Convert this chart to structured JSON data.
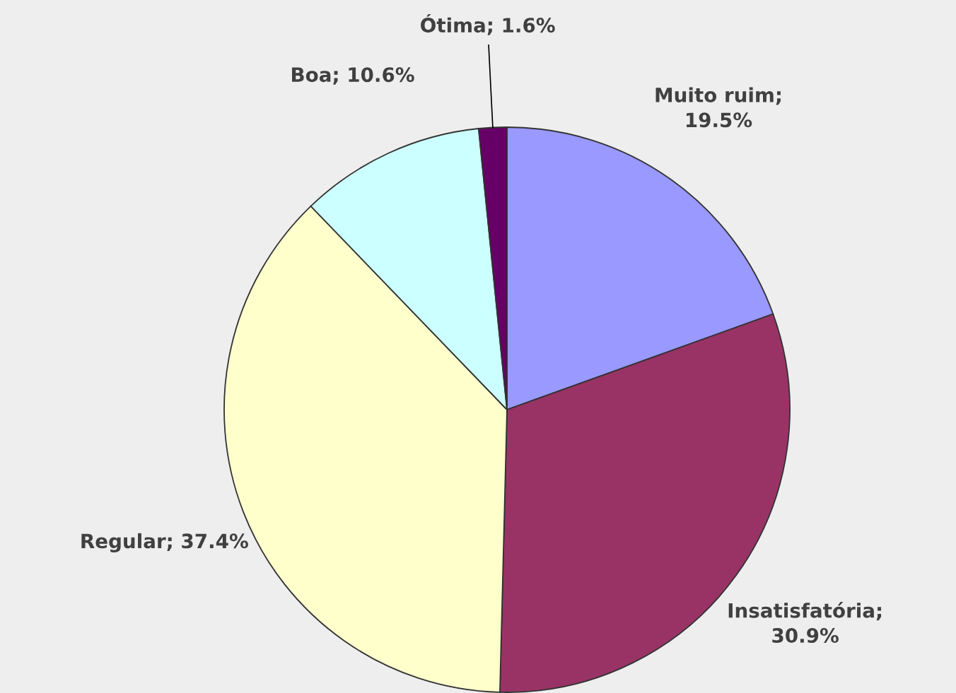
{
  "chart_data": {
    "type": "pie",
    "categories": [
      "Muito ruim",
      "Insatisfatória",
      "Regular",
      "Boa",
      "Ótima"
    ],
    "values": [
      19.5,
      30.9,
      37.4,
      10.6,
      1.6
    ],
    "colors": [
      "#9999ff",
      "#993366",
      "#ffffcc",
      "#ccffff",
      "#660066"
    ],
    "value_labels": [
      ";\n19.5%",
      ";\n30.9%",
      "; 37.4%",
      "; 10.6%",
      "; 1.6%"
    ],
    "legend": false
  }
}
